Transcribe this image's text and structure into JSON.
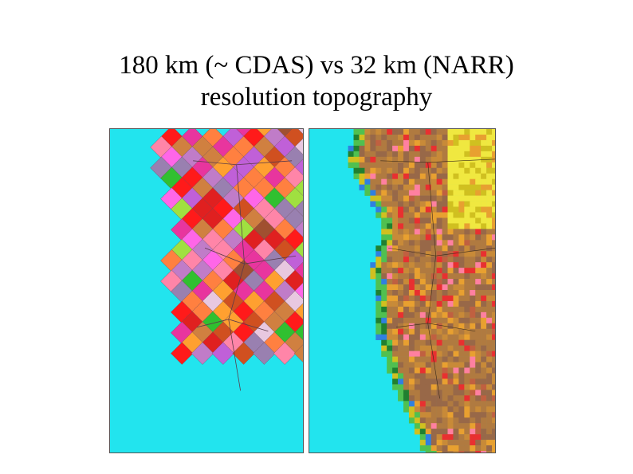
{
  "slide": {
    "title_line1": "180 km (~ CDAS) vs 32 km (NARR)",
    "title_line2": "resolution topography"
  },
  "maps": [
    {
      "id": "coarse",
      "icon": "coarse-topography-map"
    },
    {
      "id": "fine",
      "icon": "fine-topography-map"
    }
  ],
  "colors": {
    "ocean": "#22e4ee",
    "coarse_palette": [
      "#ff85a8",
      "#e8359e",
      "#c07cc8",
      "#c060d8",
      "#ff66e8",
      "#9980b0",
      "#e8c8e0",
      "#ff8040",
      "#d05020",
      "#a05030",
      "#ff1a1a",
      "#e02020",
      "#30c030",
      "#a0e040",
      "#ffa030",
      "#d08040"
    ],
    "fine_palette": [
      "#b07a40",
      "#986848",
      "#c88a38",
      "#e8a030",
      "#d0c020",
      "#f0e840",
      "#50c050",
      "#208030",
      "#3080e0",
      "#e83030",
      "#ff80a0",
      "#c06040"
    ]
  }
}
